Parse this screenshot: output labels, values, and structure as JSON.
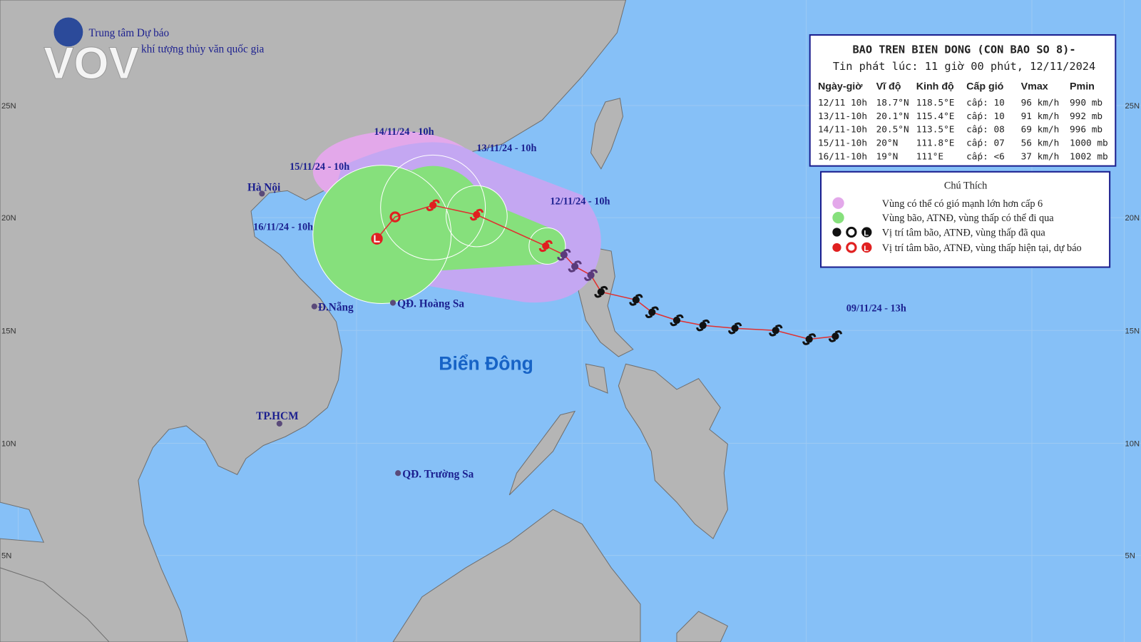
{
  "logo": {
    "brand": "VOV",
    "line1": "Trung tâm Dự báo",
    "line2": "khí tượng thủy văn quốc gia"
  },
  "info_box": {
    "title": "BAO TREN BIEN DONG (CON BAO SO 8)-",
    "subtitle": "Tin phát lúc: 11 giờ 00 phút, 12/11/2024",
    "table": {
      "header": [
        "Ngày-giờ",
        "Vĩ độ",
        "Kinh độ",
        "Cấp gió",
        "Vmax",
        "Pmin"
      ],
      "rows": [
        [
          "12/11 10h",
          "18.7°N",
          "118.5°E",
          "cấp: 10",
          "96 km/h",
          "990 mb"
        ],
        [
          "13/11-10h",
          "20.1°N",
          "115.4°E",
          "cấp: 10",
          "91 km/h",
          "992 mb"
        ],
        [
          "14/11-10h",
          "20.5°N",
          "113.5°E",
          "cấp: 08",
          "69 km/h",
          "996 mb"
        ],
        [
          "15/11-10h",
          "20°N",
          "111.8°E",
          "cấp: 07",
          "56 km/h",
          "1000 mb"
        ],
        [
          "16/11-10h",
          "19°N",
          "111°E",
          "cấp: <6",
          "37 km/h",
          "1002 mb"
        ]
      ]
    }
  },
  "legend": {
    "title": "Chú Thích",
    "items": [
      "Vùng có thể có gió mạnh lớn hơn cấp 6",
      "Vùng bão, ATNĐ, vùng thấp có thể đi qua",
      "Vị trí tâm bão, ATNĐ, vùng thấp đã qua",
      "Vị trí tâm bão, ATNĐ, vùng thấp hiện tại, dự báo"
    ]
  },
  "track_labels": [
    "14/11/24 - 10h",
    "13/11/24 - 10h",
    "15/11/24 - 10h",
    "12/11/24 - 10h",
    "16/11/24 - 10h",
    "09/11/24 - 13h"
  ],
  "places": [
    "Hà Nội",
    "Đ.Nẵng",
    "QĐ. Hoàng Sa",
    "TP.HCM",
    "QĐ. Trường Sa"
  ],
  "sea_name": "Biển Đông",
  "latitudes_right": [
    "25N",
    "20N",
    "15N",
    "10N",
    "5N"
  ],
  "latitudes_left": [
    "25N",
    "20N",
    "15N",
    "10N",
    "5N"
  ]
}
